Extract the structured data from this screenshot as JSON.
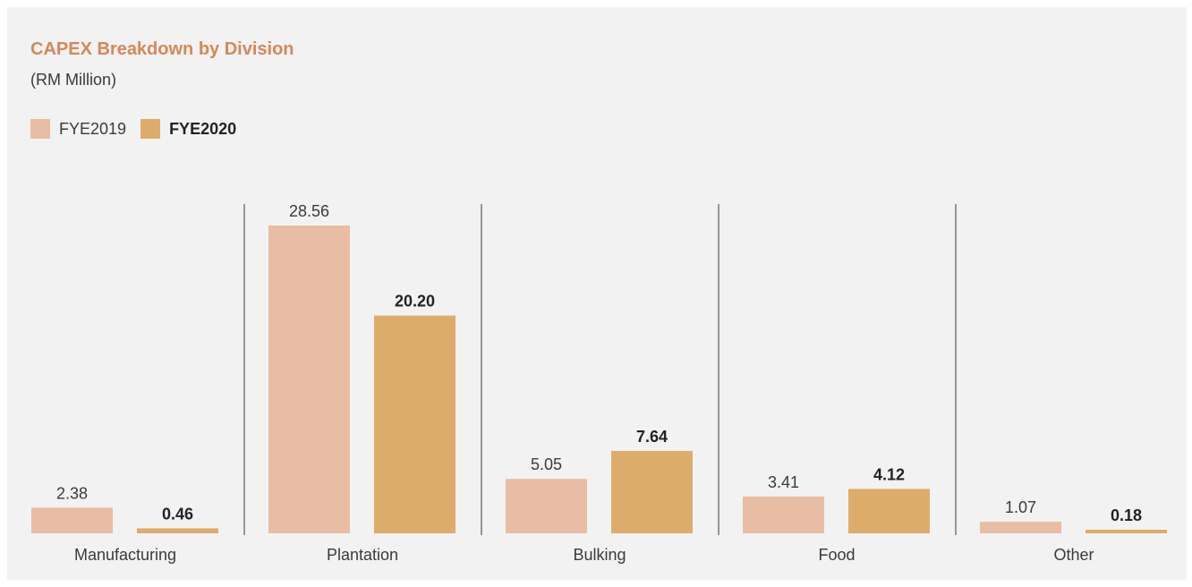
{
  "title": "CAPEX Breakdown by Division",
  "subtitle": "(RM Million)",
  "legend": [
    {
      "label": "FYE2019",
      "color": "#e8bda4",
      "bold": false
    },
    {
      "label": "FYE2020",
      "color": "#ddac6a",
      "bold": true
    }
  ],
  "chart_data": {
    "type": "bar",
    "title": "CAPEX Breakdown by Division",
    "subtitle": "(RM Million)",
    "categories": [
      "Manufacturing",
      "Plantation",
      "Bulking",
      "Food",
      "Other"
    ],
    "series": [
      {
        "name": "FYE2019",
        "values": [
          2.38,
          28.56,
          5.05,
          3.41,
          1.07
        ],
        "value_labels": [
          "2.38",
          "28.56",
          "5.05",
          "3.41",
          "1.07"
        ],
        "color": "#e8bda4",
        "label_bold": false
      },
      {
        "name": "FYE2020",
        "values": [
          0.46,
          20.2,
          7.64,
          4.12,
          0.18
        ],
        "value_labels": [
          "0.46",
          "20.20",
          "7.64",
          "4.12",
          "0.18"
        ],
        "color": "#ddac6a",
        "label_bold": true
      }
    ],
    "ylim": [
      0,
      28.56
    ],
    "grid": false,
    "legend_position": "top-left",
    "separators": true
  }
}
